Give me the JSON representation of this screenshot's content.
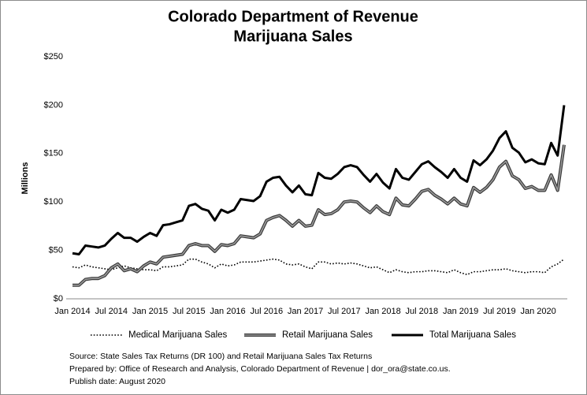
{
  "chart_data": {
    "type": "line",
    "title": [
      "Colorado Department of Revenue",
      "Marijuana Sales"
    ],
    "y_label": "Millions",
    "categories": [
      "Jan 2014",
      null,
      null,
      null,
      null,
      null,
      "Jul 2014",
      null,
      null,
      null,
      null,
      null,
      "Jan 2015",
      null,
      null,
      null,
      null,
      null,
      "Jul 2015",
      null,
      null,
      null,
      null,
      null,
      "Jan 2016",
      null,
      null,
      null,
      null,
      null,
      "Jul 2016",
      null,
      null,
      null,
      null,
      null,
      "Jan 2017",
      null,
      null,
      null,
      null,
      null,
      "Jul 2017",
      null,
      null,
      null,
      null,
      null,
      "Jan 2018",
      null,
      null,
      null,
      null,
      null,
      "Jul 2018",
      null,
      null,
      null,
      null,
      null,
      "Jan 2019",
      null,
      null,
      null,
      null,
      null,
      "Jul 2019",
      null,
      null,
      null,
      null,
      null,
      "Jan 2020",
      null,
      null,
      null,
      null
    ],
    "series": [
      {
        "name": "Medical Marijuana Sales",
        "color": "#000000",
        "style": "dotted",
        "values": [
          33,
          32,
          35,
          33,
          32,
          31,
          30,
          32,
          34,
          32,
          31,
          30,
          30,
          29,
          33,
          33,
          34,
          35,
          41,
          41,
          38,
          36,
          32,
          36,
          34,
          35,
          38,
          38,
          38,
          39,
          40,
          41,
          40,
          36,
          35,
          36,
          33,
          31,
          38,
          38,
          36,
          37,
          36,
          37,
          36,
          34,
          32,
          33,
          30,
          27,
          30,
          28,
          27,
          28,
          28,
          29,
          29,
          28,
          27,
          30,
          27,
          25,
          28,
          28,
          29,
          30,
          30,
          31,
          29,
          28,
          27,
          28,
          28,
          27,
          33,
          36,
          41
        ]
      },
      {
        "name": "Retail Marijuana Sales",
        "color": "#9a9a9a",
        "style": "outlined",
        "values": [
          14,
          14,
          20,
          21,
          21,
          24,
          32,
          36,
          29,
          31,
          28,
          34,
          38,
          36,
          43,
          44,
          45,
          46,
          55,
          57,
          55,
          55,
          49,
          56,
          55,
          57,
          65,
          64,
          63,
          67,
          81,
          84,
          86,
          81,
          75,
          81,
          75,
          76,
          92,
          87,
          88,
          92,
          100,
          101,
          100,
          94,
          89,
          96,
          90,
          87,
          104,
          97,
          96,
          103,
          111,
          113,
          107,
          103,
          98,
          104,
          98,
          96,
          115,
          110,
          115,
          123,
          136,
          142,
          127,
          123,
          114,
          116,
          112,
          112,
          128,
          112,
          159
        ]
      },
      {
        "name": "Total Marijuana Sales",
        "color": "#000000",
        "style": "thick",
        "values": [
          47,
          46,
          55,
          54,
          53,
          55,
          62,
          68,
          63,
          63,
          59,
          64,
          68,
          65,
          76,
          77,
          79,
          81,
          96,
          98,
          93,
          91,
          81,
          92,
          89,
          92,
          103,
          102,
          101,
          106,
          121,
          125,
          126,
          117,
          110,
          117,
          108,
          107,
          130,
          125,
          124,
          129,
          136,
          138,
          136,
          128,
          121,
          129,
          120,
          114,
          134,
          125,
          123,
          131,
          139,
          142,
          136,
          131,
          125,
          134,
          125,
          121,
          143,
          138,
          144,
          153,
          166,
          173,
          156,
          151,
          141,
          144,
          140,
          139,
          161,
          148,
          200
        ]
      }
    ],
    "ylim": [
      0,
      250
    ],
    "yticks": [
      {
        "value": 0,
        "label": "$0"
      },
      {
        "value": 50,
        "label": "$50"
      },
      {
        "value": 100,
        "label": "$100"
      },
      {
        "value": 150,
        "label": "$150"
      },
      {
        "value": 200,
        "label": "$200"
      },
      {
        "value": 250,
        "label": "$250"
      }
    ],
    "grid": false,
    "legend": "bottom",
    "source_notes": [
      "Source: State Sales Tax Returns (DR 100) and Retail Marijuana  Sales Tax Returns",
      "Prepared by:  Office of Research and Analysis, Colorado Department of Revenue | dor_ora@state.co.us.",
      "Publish date: August 2020"
    ]
  }
}
